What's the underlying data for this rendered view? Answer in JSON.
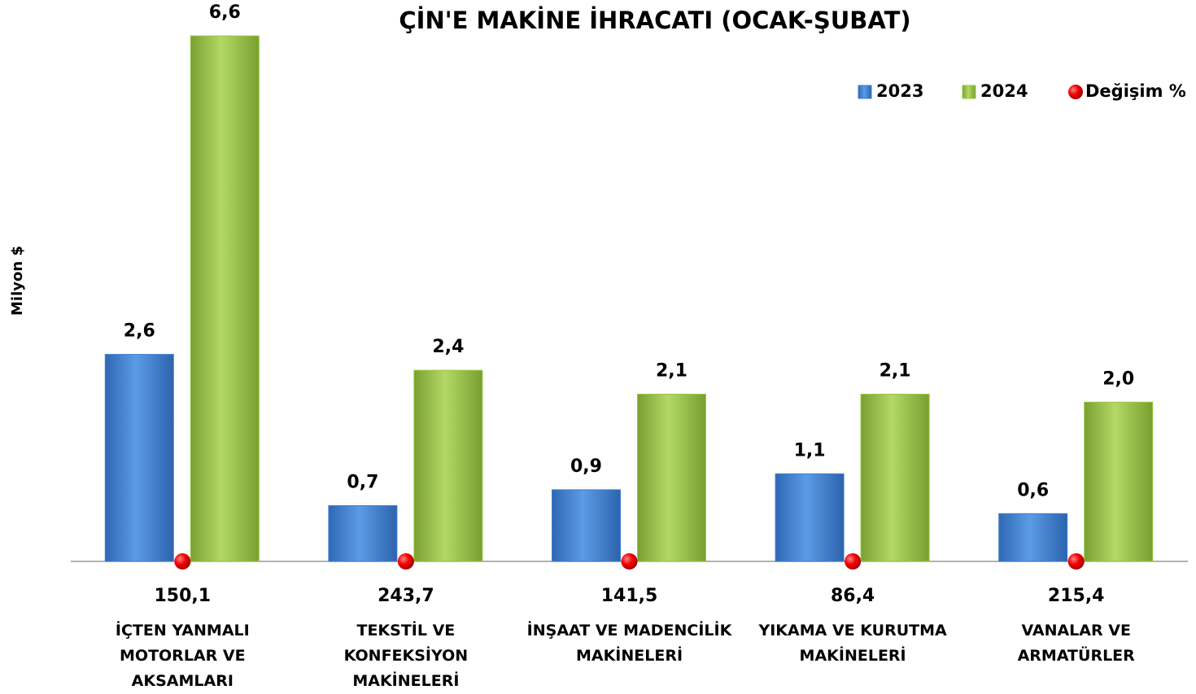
{
  "chart_data": {
    "type": "bar",
    "title": "ÇİN'E MAKİNE İHRACATI (OCAK-ŞUBAT)",
    "y_label": "Milyon $",
    "categories": [
      "İÇTEN YANMALI\nMOTORLAR VE\nAKSAMLARI",
      "TEKSTİL VE\nKONFEKSİYON\nMAKİNELERİ",
      "İNŞAAT VE MADENCİLİK\nMAKİNELERİ",
      "YIKAMA VE KURUTMA\nMAKİNELERİ",
      "VANALAR VE\nARMATÜRLER"
    ],
    "ylim": [
      0,
      7
    ],
    "legend": "top-right",
    "series": [
      {
        "name": "2023",
        "color": "#3f7fd0",
        "values": [
          2.6,
          0.7,
          0.9,
          1.1,
          0.6
        ],
        "value_labels": [
          "2,6",
          "0,7",
          "0,9",
          "1,1",
          "0,6"
        ]
      },
      {
        "name": "2024",
        "color": "#9bc444",
        "values": [
          6.6,
          2.4,
          2.1,
          2.1,
          2.0
        ],
        "value_labels": [
          "6,6",
          "2,4",
          "2,1",
          "2,1",
          "2,0"
        ]
      },
      {
        "name": "Değişim %",
        "color": "#e00000",
        "marker": "circle",
        "values": [
          150.1,
          243.7,
          141.5,
          86.4,
          215.4
        ],
        "value_labels": [
          "150,1",
          "243,7",
          "141,5",
          "86,4",
          "215,4"
        ]
      }
    ]
  }
}
